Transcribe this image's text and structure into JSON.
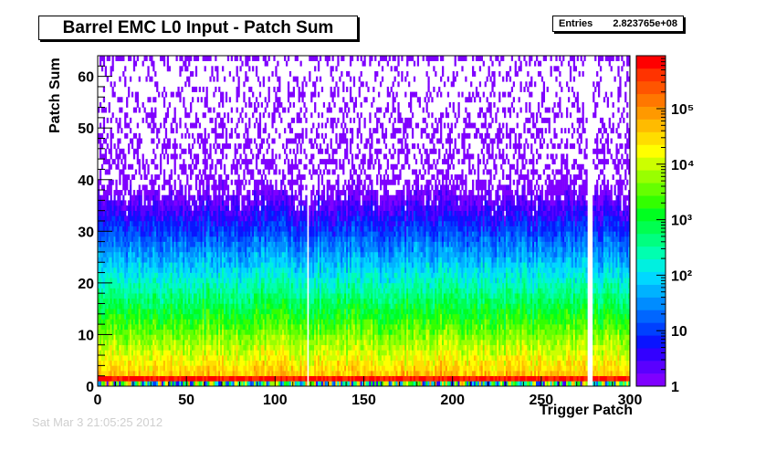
{
  "title": "Barrel EMC L0 Input - Patch Sum",
  "stats": {
    "label": "Entries",
    "value": "2.823765e+08"
  },
  "timestamp": "Sat Mar  3 21:05:25 2012",
  "chart_data": {
    "type": "heatmap",
    "title": "Barrel EMC L0 Input - Patch Sum",
    "xlabel": "Trigger Patch",
    "ylabel": "Patch Sum",
    "xlim": [
      0,
      300
    ],
    "ylim": [
      0,
      64
    ],
    "x_bins": 300,
    "y_bins": 64,
    "x_ticks": [
      0,
      50,
      100,
      150,
      200,
      250,
      300
    ],
    "y_ticks": [
      0,
      10,
      20,
      30,
      40,
      50,
      60
    ],
    "z_scale": "log",
    "zlim": [
      1,
      900000
    ],
    "z_ticks": [
      {
        "value": 1,
        "label": "1"
      },
      {
        "value": 10,
        "label": "10"
      },
      {
        "value": 100,
        "label": "10²"
      },
      {
        "value": 1000,
        "label": "10³"
      },
      {
        "value": 10000,
        "label": "10⁴"
      },
      {
        "value": 100000,
        "label": "10⁵"
      }
    ],
    "entries": 282376500,
    "dead_patches": [
      118,
      276,
      277,
      278
    ],
    "palette": [
      "#7f00ff",
      "#5a00ff",
      "#3300ff",
      "#0a14ff",
      "#0040ff",
      "#0066ff",
      "#008cff",
      "#00b2ff",
      "#00d8ff",
      "#00f0e0",
      "#00ffb0",
      "#00ff80",
      "#00ff50",
      "#00ff20",
      "#33ff00",
      "#66ff00",
      "#99ff00",
      "#ccff00",
      "#ffff00",
      "#ffdd00",
      "#ffbb00",
      "#ff9900",
      "#ff7700",
      "#ff5500",
      "#ff3300",
      "#ff0000"
    ],
    "grid": false,
    "legend": "colorbar-right"
  }
}
